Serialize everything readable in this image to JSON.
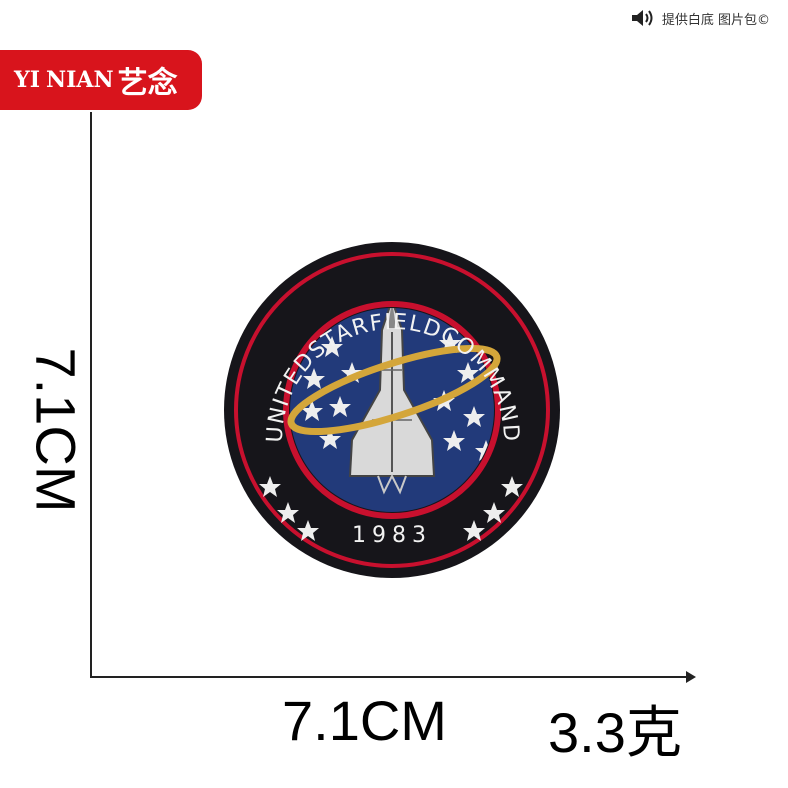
{
  "brand": {
    "latin_1": "YI",
    "latin_2": "NIAN",
    "chinese": "艺念",
    "color": "#d8141c"
  },
  "top_notice": {
    "text": "提供白底 图片包©",
    "icon": "speaker-icon"
  },
  "dimensions": {
    "height_label": "7.1CM",
    "width_label": "7.1CM"
  },
  "weight": {
    "label": "3.3克"
  },
  "patch": {
    "arc_text": "UNITEDSTARFIELDCOMMAND",
    "year": "1983",
    "colors": {
      "outer": "#16151a",
      "ring": "#c8102e",
      "field": "#223a7a",
      "orbit": "#d4a63a",
      "shuttle": "#d9d9d9"
    }
  }
}
